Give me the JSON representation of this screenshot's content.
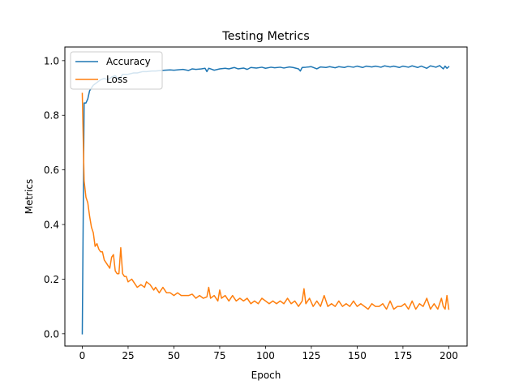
{
  "chart_data": {
    "type": "line",
    "title": "Testing Metrics",
    "xlabel": "Epoch",
    "ylabel": "Metrics",
    "xlim": [
      -9.5,
      210
    ],
    "ylim": [
      -0.045,
      1.05
    ],
    "xticks": [
      0,
      25,
      50,
      75,
      100,
      125,
      150,
      175,
      200
    ],
    "yticks": [
      0.0,
      0.2,
      0.4,
      0.6,
      0.8,
      1.0
    ],
    "xtick_labels": [
      "0",
      "25",
      "50",
      "75",
      "100",
      "125",
      "150",
      "175",
      "200"
    ],
    "ytick_labels": [
      "0.0",
      "0.2",
      "0.4",
      "0.6",
      "0.8",
      "1.0"
    ],
    "grid": false,
    "legend_position": "upper-left",
    "series": [
      {
        "name": "Accuracy",
        "color": "#1f77b4",
        "x": [
          0,
          1,
          2,
          3,
          4,
          5,
          6,
          7,
          8,
          10,
          12,
          14,
          16,
          18,
          20,
          22,
          25,
          28,
          30,
          33,
          35,
          38,
          40,
          43,
          45,
          48,
          50,
          53,
          55,
          58,
          60,
          62,
          65,
          67,
          68,
          69,
          70,
          72,
          75,
          78,
          80,
          83,
          85,
          88,
          90,
          92,
          95,
          98,
          100,
          103,
          105,
          108,
          110,
          113,
          115,
          118,
          119,
          120,
          122,
          125,
          128,
          130,
          133,
          135,
          138,
          140,
          143,
          145,
          148,
          150,
          153,
          155,
          158,
          160,
          163,
          165,
          168,
          170,
          173,
          175,
          178,
          180,
          183,
          185,
          188,
          190,
          193,
          195,
          197,
          198,
          199,
          200
        ],
        "values": [
          0.0,
          0.845,
          0.845,
          0.86,
          0.89,
          0.9,
          0.91,
          0.915,
          0.92,
          0.93,
          0.935,
          0.93,
          0.94,
          0.945,
          0.93,
          0.95,
          0.95,
          0.955,
          0.955,
          0.96,
          0.96,
          0.962,
          0.962,
          0.964,
          0.965,
          0.966,
          0.965,
          0.967,
          0.968,
          0.964,
          0.97,
          0.968,
          0.97,
          0.972,
          0.96,
          0.972,
          0.97,
          0.965,
          0.97,
          0.972,
          0.97,
          0.975,
          0.97,
          0.973,
          0.968,
          0.975,
          0.973,
          0.976,
          0.972,
          0.976,
          0.974,
          0.976,
          0.973,
          0.977,
          0.975,
          0.97,
          0.962,
          0.975,
          0.976,
          0.978,
          0.97,
          0.977,
          0.975,
          0.978,
          0.974,
          0.978,
          0.975,
          0.979,
          0.976,
          0.98,
          0.975,
          0.98,
          0.977,
          0.98,
          0.976,
          0.981,
          0.977,
          0.98,
          0.975,
          0.98,
          0.976,
          0.981,
          0.975,
          0.98,
          0.972,
          0.981,
          0.976,
          0.982,
          0.97,
          0.98,
          0.972,
          0.978
        ]
      },
      {
        "name": "Loss",
        "color": "#ff7f0e",
        "x": [
          0,
          1,
          2,
          3,
          4,
          5,
          6,
          7,
          8,
          9,
          10,
          11,
          12,
          13,
          14,
          15,
          16,
          17,
          18,
          19,
          20,
          21,
          22,
          23,
          24,
          25,
          27,
          29,
          30,
          32,
          34,
          35,
          37,
          39,
          40,
          42,
          44,
          46,
          48,
          50,
          52,
          54,
          56,
          58,
          60,
          62,
          64,
          66,
          68,
          69,
          70,
          72,
          74,
          75,
          76,
          78,
          80,
          82,
          84,
          86,
          88,
          90,
          92,
          94,
          96,
          98,
          100,
          102,
          104,
          106,
          108,
          110,
          112,
          114,
          116,
          118,
          120,
          121,
          122,
          124,
          126,
          128,
          130,
          132,
          134,
          136,
          138,
          140,
          142,
          144,
          146,
          148,
          150,
          152,
          154,
          156,
          158,
          160,
          162,
          164,
          166,
          168,
          170,
          172,
          174,
          176,
          178,
          180,
          182,
          184,
          186,
          188,
          190,
          192,
          194,
          196,
          197,
          198,
          199,
          200
        ],
        "values": [
          0.88,
          0.56,
          0.5,
          0.48,
          0.43,
          0.39,
          0.37,
          0.32,
          0.33,
          0.31,
          0.3,
          0.3,
          0.27,
          0.26,
          0.25,
          0.24,
          0.28,
          0.29,
          0.23,
          0.22,
          0.22,
          0.315,
          0.22,
          0.21,
          0.21,
          0.19,
          0.2,
          0.18,
          0.17,
          0.18,
          0.17,
          0.19,
          0.18,
          0.16,
          0.17,
          0.15,
          0.17,
          0.15,
          0.15,
          0.14,
          0.15,
          0.14,
          0.14,
          0.14,
          0.145,
          0.13,
          0.14,
          0.13,
          0.135,
          0.17,
          0.13,
          0.14,
          0.12,
          0.16,
          0.13,
          0.14,
          0.12,
          0.14,
          0.12,
          0.13,
          0.12,
          0.13,
          0.11,
          0.12,
          0.11,
          0.13,
          0.12,
          0.11,
          0.12,
          0.11,
          0.12,
          0.11,
          0.13,
          0.11,
          0.12,
          0.1,
          0.12,
          0.165,
          0.11,
          0.13,
          0.1,
          0.12,
          0.1,
          0.14,
          0.1,
          0.11,
          0.1,
          0.12,
          0.1,
          0.11,
          0.1,
          0.12,
          0.1,
          0.11,
          0.1,
          0.09,
          0.11,
          0.1,
          0.1,
          0.11,
          0.09,
          0.12,
          0.09,
          0.1,
          0.1,
          0.11,
          0.09,
          0.12,
          0.09,
          0.11,
          0.1,
          0.13,
          0.09,
          0.11,
          0.09,
          0.13,
          0.1,
          0.09,
          0.14,
          0.09
        ]
      }
    ]
  }
}
